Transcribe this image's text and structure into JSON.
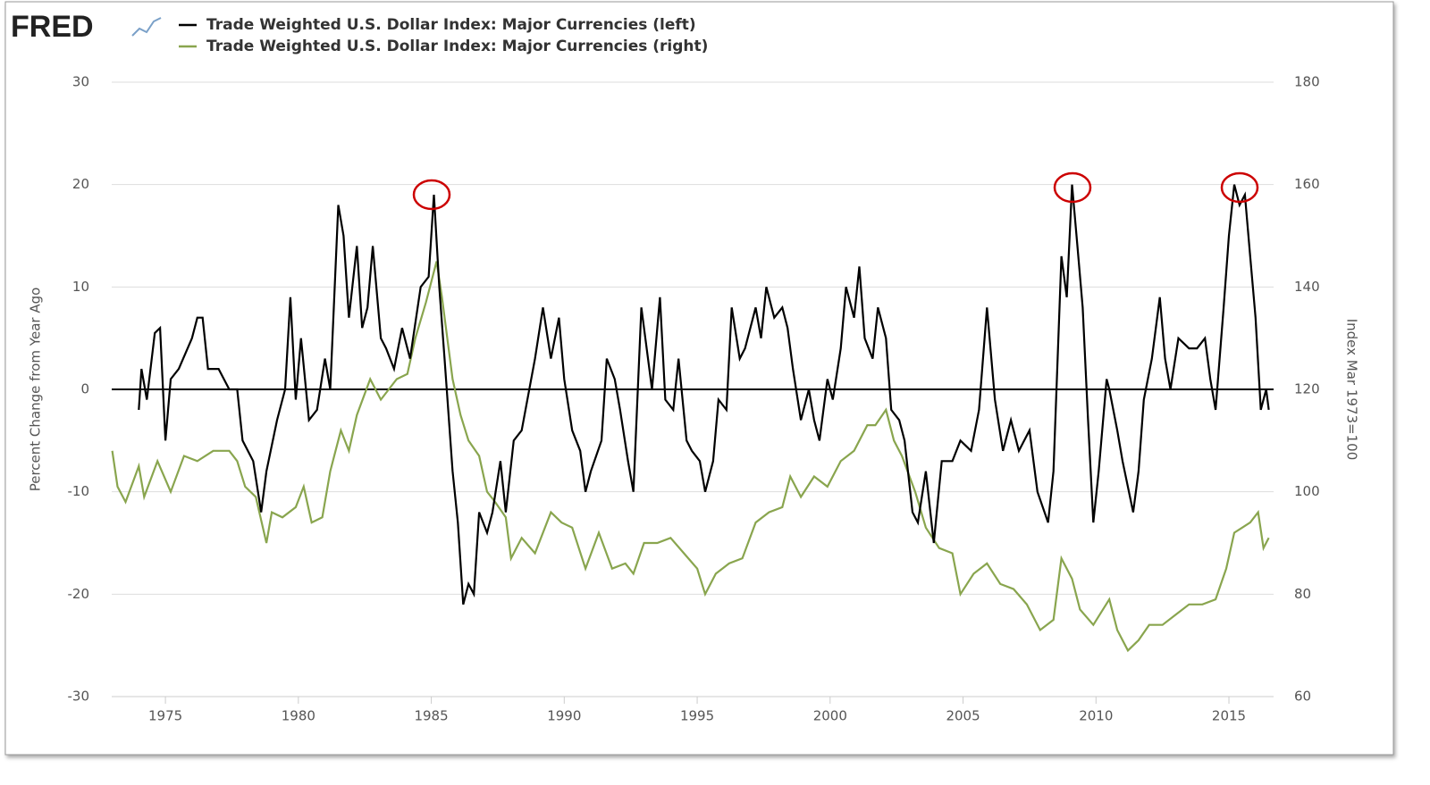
{
  "logo": "FRED",
  "chart_data": {
    "type": "line",
    "y_label": "Percent Change from Year Ago",
    "y2_label": "Index Mar 1973=100",
    "xlim": [
      1972.98,
      2016.68
    ],
    "xticks": [
      1975,
      1980,
      1985,
      1990,
      1995,
      2000,
      2005,
      2010,
      2015
    ],
    "ylim": [
      -30,
      30
    ],
    "yticks": [
      -30,
      -20,
      -10,
      0,
      10,
      20,
      30
    ],
    "y2lim": [
      60,
      180
    ],
    "y2ticks": [
      60,
      80,
      100,
      120,
      140,
      160,
      180
    ],
    "grid": true,
    "series": [
      {
        "name": "Trade Weighted U.S. Dollar Index: Major Currencies (left)",
        "color": "#000000",
        "x": [
          1974.0,
          1974.1,
          1974.3,
          1974.6,
          1974.8,
          1975.0,
          1975.2,
          1975.5,
          1976.0,
          1976.2,
          1976.4,
          1976.6,
          1977.0,
          1977.4,
          1977.7,
          1977.9,
          1978.3,
          1978.6,
          1978.8,
          1979.2,
          1979.5,
          1979.7,
          1979.9,
          1980.1,
          1980.4,
          1980.7,
          1981.0,
          1981.2,
          1981.4,
          1981.5,
          1981.7,
          1981.9,
          1982.2,
          1982.4,
          1982.6,
          1982.8,
          1983.1,
          1983.3,
          1983.6,
          1983.9,
          1984.2,
          1984.6,
          1984.9,
          1985.1,
          1985.3,
          1985.5,
          1985.8,
          1986.0,
          1986.2,
          1986.4,
          1986.6,
          1986.8,
          1987.1,
          1987.3,
          1987.6,
          1987.8,
          1988.1,
          1988.4,
          1988.9,
          1989.2,
          1989.5,
          1989.8,
          1990.0,
          1990.3,
          1990.6,
          1990.8,
          1991.0,
          1991.4,
          1991.6,
          1991.9,
          1992.1,
          1992.4,
          1992.6,
          1992.9,
          1993.3,
          1993.6,
          1993.8,
          1994.1,
          1994.3,
          1994.6,
          1994.8,
          1995.1,
          1995.3,
          1995.6,
          1995.8,
          1996.1,
          1996.3,
          1996.6,
          1996.8,
          1997.2,
          1997.4,
          1997.6,
          1997.9,
          1998.2,
          1998.4,
          1998.6,
          1998.9,
          1999.2,
          1999.4,
          1999.6,
          1999.9,
          2000.1,
          2000.4,
          2000.6,
          2000.9,
          2001.1,
          2001.3,
          2001.6,
          2001.8,
          2002.1,
          2002.3,
          2002.6,
          2002.8,
          2003.1,
          2003.3,
          2003.6,
          2003.9,
          2004.2,
          2004.6,
          2004.9,
          2005.3,
          2005.6,
          2005.9,
          2006.2,
          2006.5,
          2006.8,
          2007.1,
          2007.5,
          2007.8,
          2008.2,
          2008.4,
          2008.7,
          2008.9,
          2009.1,
          2009.3,
          2009.5,
          2009.7,
          2009.9,
          2010.1,
          2010.4,
          2010.5,
          2010.8,
          2011.0,
          2011.4,
          2011.6,
          2011.8,
          2012.1,
          2012.4,
          2012.6,
          2012.8,
          2013.1,
          2013.5,
          2013.8,
          2014.1,
          2014.3,
          2014.5,
          2014.8,
          2015.0,
          2015.2,
          2015.4,
          2015.6,
          2015.8,
          2016.0,
          2016.2,
          2016.4,
          2016.5
        ],
        "values": [
          -2,
          2,
          -1,
          5.5,
          6,
          -5,
          1,
          2,
          5,
          7,
          7,
          2,
          2,
          0,
          0,
          -5,
          -7,
          -12,
          -8,
          -3,
          0,
          9,
          -1,
          5,
          -3,
          -2,
          3,
          0,
          12,
          18,
          15,
          7,
          14,
          6,
          8,
          14,
          5,
          4,
          2,
          6,
          3,
          10,
          11,
          19,
          10,
          3,
          -8,
          -13,
          -21,
          -19,
          -20,
          -12,
          -14,
          -12,
          -7,
          -12,
          -5,
          -4,
          3,
          8,
          3,
          7,
          1,
          -4,
          -6,
          -10,
          -8,
          -5,
          3,
          1,
          -2,
          -7,
          -10,
          8,
          0,
          9,
          -1,
          -2,
          3,
          -5,
          -6,
          -7,
          -10,
          -7,
          -1,
          -2,
          8,
          3,
          4,
          8,
          5,
          10,
          7,
          8,
          6,
          2,
          -3,
          0,
          -3,
          -5,
          1,
          -1,
          4,
          10,
          7,
          12,
          5,
          3,
          8,
          5,
          -2,
          -3,
          -5,
          -12,
          -13,
          -8,
          -15,
          -7,
          -7,
          -5,
          -6,
          -2,
          8,
          -1,
          -6,
          -3,
          -6,
          -4,
          -10,
          -13,
          -8,
          13,
          9,
          20,
          14,
          8,
          -3,
          -13,
          -8,
          1,
          0,
          -4,
          -7,
          -12,
          -8,
          -1,
          3,
          9,
          3,
          0,
          5,
          4,
          4,
          5,
          1,
          -2,
          8,
          15,
          20,
          18,
          19,
          13,
          7,
          -2,
          0,
          -2
        ]
      },
      {
        "name": "Trade Weighted U.S. Dollar Index: Major Currencies (right)",
        "color": "#89a54e",
        "axis": "y2",
        "x": [
          1973.0,
          1973.2,
          1973.5,
          1974.0,
          1974.2,
          1974.7,
          1975.2,
          1975.7,
          1976.2,
          1976.8,
          1977.4,
          1977.7,
          1978.0,
          1978.4,
          1978.8,
          1979.0,
          1979.4,
          1979.9,
          1980.2,
          1980.5,
          1980.9,
          1981.2,
          1981.6,
          1981.9,
          1982.2,
          1982.7,
          1983.1,
          1983.4,
          1983.7,
          1984.1,
          1984.4,
          1984.8,
          1985.2,
          1985.4,
          1985.8,
          1986.1,
          1986.4,
          1986.8,
          1987.1,
          1987.4,
          1987.8,
          1988.0,
          1988.4,
          1988.9,
          1989.5,
          1989.9,
          1990.3,
          1990.8,
          1991.3,
          1991.8,
          1992.3,
          1992.6,
          1993.0,
          1993.5,
          1994.0,
          1994.5,
          1995.0,
          1995.3,
          1995.7,
          1996.2,
          1996.7,
          1997.2,
          1997.7,
          1998.2,
          1998.5,
          1998.9,
          1999.4,
          1999.9,
          2000.4,
          2000.9,
          2001.4,
          2001.7,
          2002.1,
          2002.4,
          2002.7,
          2003.2,
          2003.6,
          2004.1,
          2004.6,
          2004.9,
          2005.4,
          2005.9,
          2006.4,
          2006.9,
          2007.4,
          2007.9,
          2008.4,
          2008.7,
          2009.1,
          2009.4,
          2009.9,
          2010.5,
          2010.8,
          2011.2,
          2011.6,
          2012.0,
          2012.5,
          2013.0,
          2013.5,
          2014.0,
          2014.5,
          2014.9,
          2015.2,
          2015.5,
          2015.8,
          2016.1,
          2016.3,
          2016.5
        ],
        "values": [
          108,
          101,
          98,
          105,
          99,
          106,
          100,
          107,
          106,
          108,
          108,
          106,
          101,
          99,
          90,
          96,
          95,
          97,
          101,
          94,
          95,
          104,
          112,
          108,
          115,
          122,
          118,
          120,
          122,
          123,
          130,
          137,
          145,
          138,
          122,
          115,
          110,
          107,
          100,
          98,
          95,
          87,
          91,
          88,
          96,
          94,
          93,
          85,
          92,
          85,
          86,
          84,
          90,
          90,
          91,
          88,
          85,
          80,
          84,
          86,
          87,
          94,
          96,
          97,
          103,
          99,
          103,
          101,
          106,
          108,
          113,
          113,
          116,
          110,
          107,
          100,
          93,
          89,
          88,
          80,
          84,
          86,
          82,
          81,
          78,
          73,
          75,
          87,
          83,
          77,
          74,
          79,
          73,
          69,
          71,
          74,
          74,
          76,
          78,
          78,
          79,
          85,
          92,
          93,
          94,
          96,
          89,
          91
        ]
      }
    ]
  }
}
